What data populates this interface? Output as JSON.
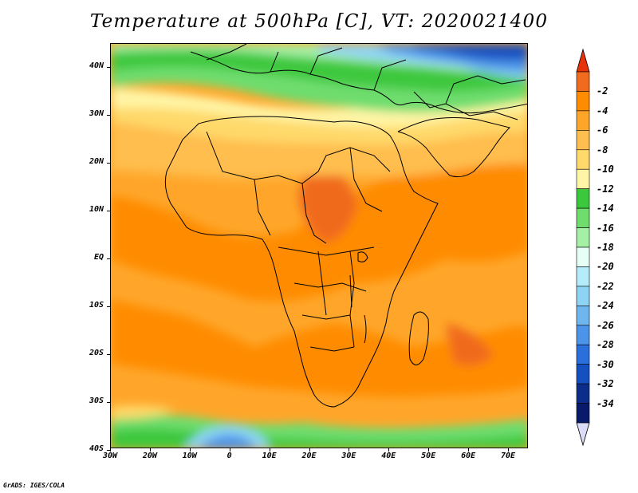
{
  "title": "Temperature at 500hPa [C], VT: 2020021400",
  "credit": "GrADS: IGES/COLA",
  "map": {
    "lat_labels": [
      "40N",
      "30N",
      "20N",
      "10N",
      "EQ",
      "10S",
      "20S",
      "30S",
      "40S"
    ],
    "lon_labels": [
      "30W",
      "20W",
      "10W",
      "0",
      "10E",
      "20E",
      "30E",
      "40E",
      "50E",
      "60E",
      "70E"
    ],
    "lat_range": [
      -40,
      45
    ],
    "lon_range": [
      -30,
      75
    ]
  },
  "colorbar": {
    "labels": [
      "-2",
      "-4",
      "-6",
      "-8",
      "-10",
      "-12",
      "-14",
      "-16",
      "-18",
      "-20",
      "-22",
      "-24",
      "-26",
      "-28",
      "-30",
      "-32",
      "-34"
    ],
    "colors": [
      "#f06b1e",
      "#ff8c00",
      "#ffa62a",
      "#ffbe4d",
      "#ffd96a",
      "#fff5a6",
      "#3cc83c",
      "#6edd6e",
      "#a6f0a6",
      "#e6fff6",
      "#b4ecf9",
      "#8ed3f3",
      "#6fb6ef",
      "#4c94e9",
      "#2a6fdc",
      "#1550c0",
      "#0d2d8a",
      "#0a1a6a"
    ],
    "top_arrow_color": "#e8320a",
    "bottom_arrow_color": "#dcdcf8"
  }
}
